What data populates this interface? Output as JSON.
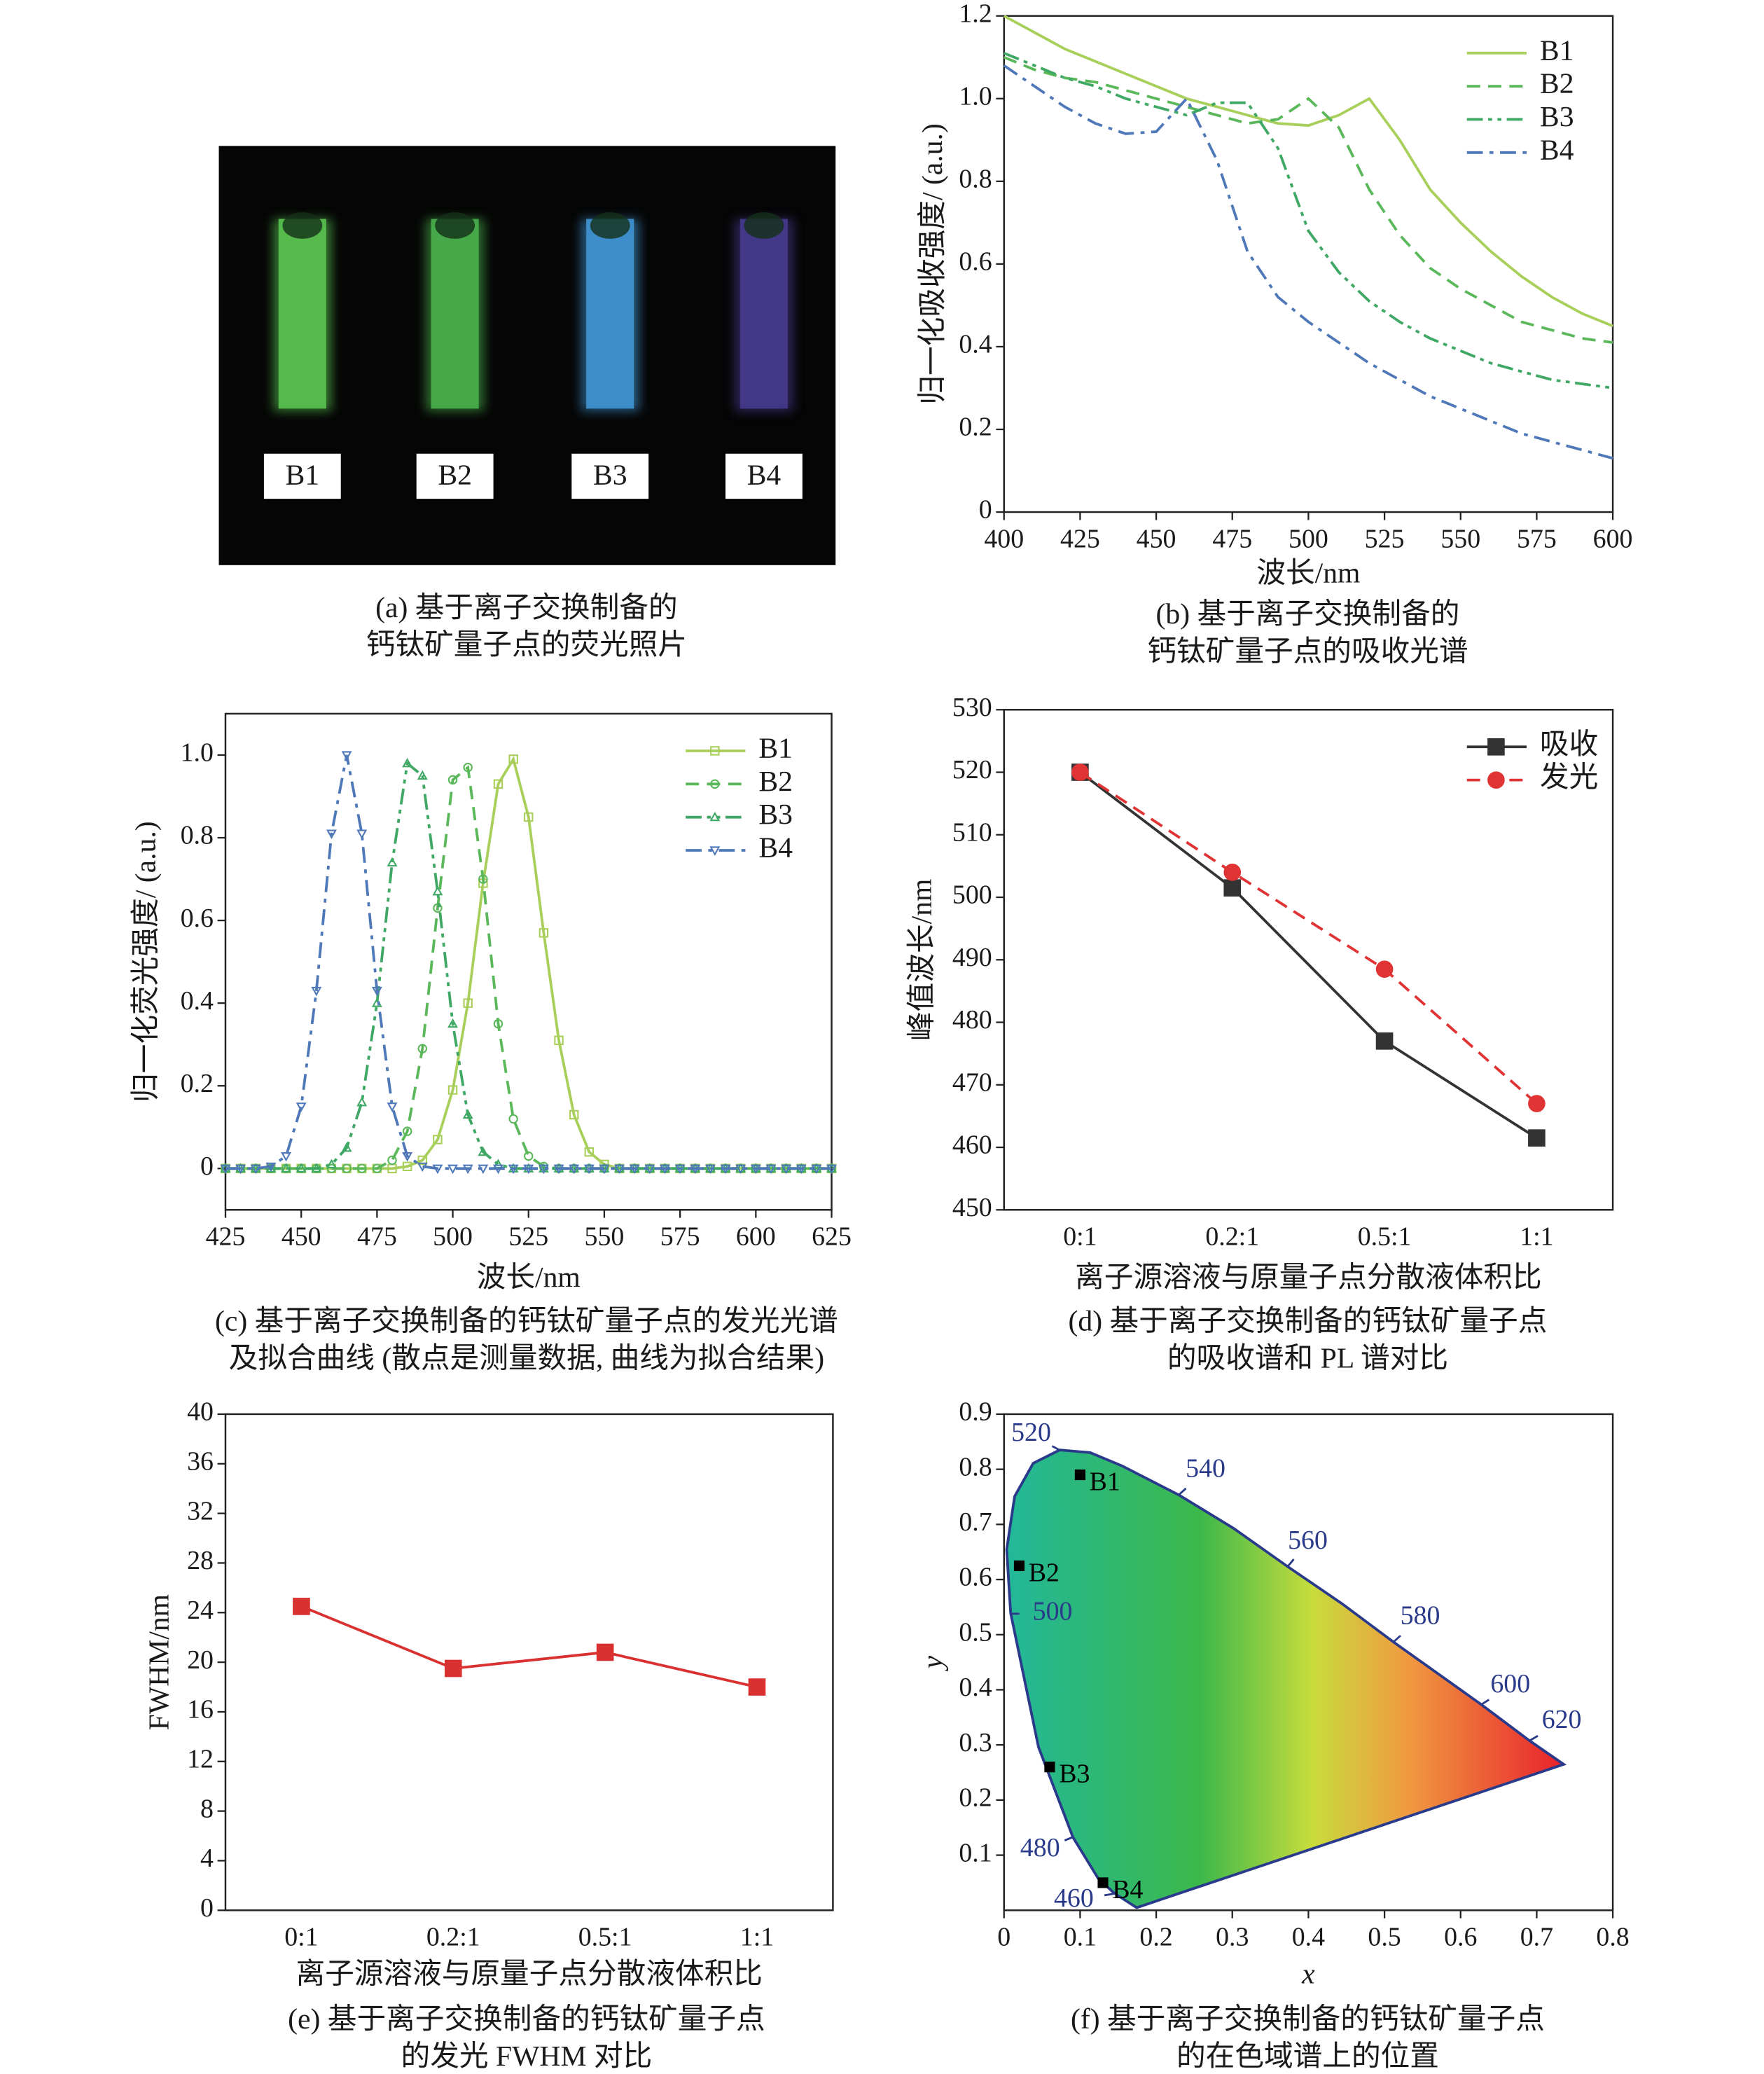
{
  "chart_data": [
    {
      "type": "photo",
      "labels": [
        "B1",
        "B2",
        "B3",
        "B4"
      ],
      "colors": [
        "#59c24f",
        "#48b04c",
        "#3f94d2",
        "#463a8e"
      ],
      "caption": [
        "(a) 基于离子交换制备的",
        "钙钛矿量子点的荧光照片"
      ]
    },
    {
      "type": "line",
      "xlabel": "波长/nm",
      "ylabel": "归一化吸收强度/ (a.u.)",
      "xlim": [
        400,
        600
      ],
      "xticks": [
        400,
        425,
        450,
        475,
        500,
        525,
        550,
        575,
        600
      ],
      "ylim": [
        0,
        1.2
      ],
      "yticks": [
        0,
        0.2,
        0.4,
        0.6,
        0.8,
        {
          "value": 1,
          "label": "1.0"
        },
        1.2
      ],
      "grid": false,
      "legend": "upper right",
      "x": [
        400,
        410,
        420,
        430,
        440,
        450,
        460,
        470,
        480,
        490,
        500,
        510,
        520,
        530,
        540,
        550,
        560,
        570,
        580,
        590,
        600
      ],
      "series": [
        {
          "name": "B1",
          "color": "#a9cf5b",
          "dash": "solid",
          "values": [
            1.2,
            1.16,
            1.12,
            1.09,
            1.06,
            1.03,
            1.0,
            0.98,
            0.96,
            0.94,
            0.935,
            0.96,
            1.0,
            0.9,
            0.78,
            0.7,
            0.63,
            0.57,
            0.52,
            0.48,
            0.45
          ]
        },
        {
          "name": "B2",
          "color": "#5bb85a",
          "dash": "dashed",
          "values": [
            1.1,
            1.07,
            1.05,
            1.04,
            1.02,
            1.0,
            0.98,
            0.96,
            0.94,
            0.95,
            1.0,
            0.93,
            0.78,
            0.67,
            0.59,
            0.54,
            0.5,
            0.46,
            0.44,
            0.42,
            0.41
          ]
        },
        {
          "name": "B3",
          "color": "#3fa864",
          "dash": "dashdotdot",
          "values": [
            1.11,
            1.08,
            1.05,
            1.03,
            1.0,
            0.98,
            0.96,
            0.99,
            0.99,
            0.88,
            0.68,
            0.58,
            0.51,
            0.46,
            0.42,
            0.39,
            0.36,
            0.34,
            0.32,
            0.31,
            0.3
          ]
        },
        {
          "name": "B4",
          "color": "#4f78b8",
          "dash": "dashdot",
          "values": [
            1.08,
            1.03,
            0.98,
            0.94,
            0.915,
            0.92,
            1.0,
            0.85,
            0.63,
            0.52,
            0.46,
            0.41,
            0.36,
            0.32,
            0.28,
            0.25,
            0.22,
            0.19,
            0.17,
            0.15,
            0.13
          ]
        }
      ],
      "caption": [
        "(b) 基于离子交换制备的",
        "钙钛矿量子点的吸收光谱"
      ]
    },
    {
      "type": "line",
      "xlabel": "波长/nm",
      "ylabel": "归一化荧光强度/ (a.u.)",
      "xlim": [
        425,
        625
      ],
      "xticks": [
        425,
        450,
        475,
        500,
        525,
        550,
        575,
        600,
        625
      ],
      "ylim": [
        -0.1,
        1.1
      ],
      "yticks": [
        0,
        0.2,
        0.4,
        0.6,
        0.8,
        {
          "value": 1,
          "label": "1.0"
        }
      ],
      "grid": false,
      "legend": "upper right",
      "marker_style": "open",
      "x": [
        425,
        430,
        435,
        440,
        445,
        450,
        455,
        460,
        465,
        470,
        475,
        480,
        485,
        490,
        495,
        500,
        505,
        510,
        515,
        520,
        525,
        530,
        535,
        540,
        545,
        550,
        555,
        560,
        565,
        570,
        575,
        580,
        585,
        590,
        595,
        600,
        605,
        610,
        615,
        620,
        625
      ],
      "series": [
        {
          "name": "B1",
          "color": "#a9cf5b",
          "dash": "solid",
          "marker": "square",
          "values": [
            0,
            0,
            0,
            0,
            0,
            0,
            0,
            0,
            0,
            0,
            0,
            0,
            0.005,
            0.02,
            0.07,
            0.19,
            0.4,
            0.69,
            0.93,
            0.99,
            0.85,
            0.57,
            0.31,
            0.13,
            0.04,
            0.01,
            0,
            0,
            0,
            0,
            0,
            0,
            0,
            0,
            0,
            0,
            0,
            0,
            0,
            0,
            0
          ]
        },
        {
          "name": "B2",
          "color": "#5bb85a",
          "dash": "dashed",
          "marker": "circle",
          "values": [
            0,
            0,
            0,
            0,
            0,
            0,
            0,
            0,
            0,
            0,
            0,
            0.02,
            0.09,
            0.29,
            0.63,
            0.94,
            0.97,
            0.7,
            0.35,
            0.12,
            0.03,
            0.005,
            0,
            0,
            0,
            0,
            0,
            0,
            0,
            0,
            0,
            0,
            0,
            0,
            0,
            0,
            0,
            0,
            0,
            0,
            0
          ]
        },
        {
          "name": "B3",
          "color": "#3fa864",
          "dash": "dashdotdot",
          "marker": "triangle",
          "values": [
            0,
            0,
            0,
            0,
            0,
            0,
            0,
            0.01,
            0.05,
            0.16,
            0.4,
            0.74,
            0.98,
            0.95,
            0.67,
            0.35,
            0.13,
            0.04,
            0.01,
            0,
            0,
            0,
            0,
            0,
            0,
            0,
            0,
            0,
            0,
            0,
            0,
            0,
            0,
            0,
            0,
            0,
            0,
            0,
            0,
            0,
            0
          ]
        },
        {
          "name": "B4",
          "color": "#4f78b8",
          "dash": "dashdot",
          "marker": "triangle-down",
          "values": [
            0,
            0,
            0,
            0.005,
            0.03,
            0.15,
            0.43,
            0.81,
            1,
            0.81,
            0.43,
            0.15,
            0.03,
            0.005,
            0,
            0,
            0,
            0,
            0,
            0,
            0,
            0,
            0,
            0,
            0,
            0,
            0,
            0,
            0,
            0,
            0,
            0,
            0,
            0,
            0,
            0,
            0,
            0,
            0,
            0,
            0
          ]
        }
      ],
      "caption": [
        "(c) 基于离子交换制备的钙钛矿量子点的发光光谱",
        "及拟合曲线 (散点是测量数据, 曲线为拟合结果)"
      ]
    },
    {
      "type": "line",
      "xlabel": "离子源溶液与原量子点分散液体积比",
      "ylabel": "峰值波长/nm",
      "categories": [
        "0:1",
        "0.2:1",
        "0.5:1",
        "1:1"
      ],
      "ylim": [
        450,
        530
      ],
      "yticks": [
        450,
        460,
        470,
        480,
        490,
        500,
        510,
        520,
        530
      ],
      "grid": false,
      "legend": "upper right",
      "marker_style": "filled",
      "series": [
        {
          "name": "吸收",
          "color": "#333333",
          "dash": "solid",
          "marker": "square",
          "values": [
            520,
            501.5,
            477,
            461.5
          ]
        },
        {
          "name": "发光",
          "color": "#e03333",
          "dash": "dashed",
          "marker": "circle",
          "values": [
            520,
            504,
            488.5,
            467
          ]
        }
      ],
      "caption": [
        "(d) 基于离子交换制备的钙钛矿量子点",
        "的吸收谱和 PL 谱对比"
      ]
    },
    {
      "type": "line",
      "xlabel": "离子源溶液与原量子点分散液体积比",
      "ylabel": "FWHM/nm",
      "categories": [
        "0:1",
        "0.2:1",
        "0.5:1",
        "1:1"
      ],
      "ylim": [
        0,
        40
      ],
      "yticks": [
        0,
        4,
        8,
        12,
        16,
        20,
        24,
        28,
        32,
        36,
        40
      ],
      "grid": false,
      "marker_style": "filled",
      "series": [
        {
          "color": "#d93030",
          "dash": "solid",
          "marker": "square",
          "values": [
            24.5,
            19.5,
            20.8,
            18
          ]
        }
      ],
      "caption": [
        "(e) 基于离子交换制备的钙钛矿量子点",
        "的发光 FWHM 对比"
      ]
    },
    {
      "type": "cie",
      "xlabel": "x",
      "ylabel": "y",
      "xlim": [
        0,
        0.8
      ],
      "xticks": [
        0,
        0.1,
        0.2,
        0.3,
        0.4,
        0.5,
        0.6,
        0.7,
        0.8
      ],
      "ylim": [
        0,
        0.9
      ],
      "yticks": [
        0.1,
        0.2,
        0.3,
        0.4,
        0.5,
        0.6,
        0.7,
        0.8,
        0.9
      ],
      "grid": false,
      "wavelengths": {
        "labels": [
          460,
          480,
          500,
          520,
          540,
          560,
          580,
          600,
          620
        ],
        "x": [
          0.144,
          0.091,
          0.008,
          0.074,
          0.23,
          0.373,
          0.512,
          0.627,
          0.691
        ],
        "y": [
          0.03,
          0.133,
          0.538,
          0.834,
          0.754,
          0.624,
          0.487,
          0.373,
          0.308
        ],
        "color": "#2a3a8a"
      },
      "points": {
        "labels": [
          "B1",
          "B2",
          "B3",
          "B4"
        ],
        "x": [
          0.1,
          0.02,
          0.06,
          0.13
        ],
        "y": [
          0.79,
          0.625,
          0.26,
          0.05
        ],
        "color": "#000000"
      },
      "caption": [
        "(f) 基于离子交换制备的钙钛矿量子点",
        "的在色域谱上的位置"
      ]
    }
  ]
}
